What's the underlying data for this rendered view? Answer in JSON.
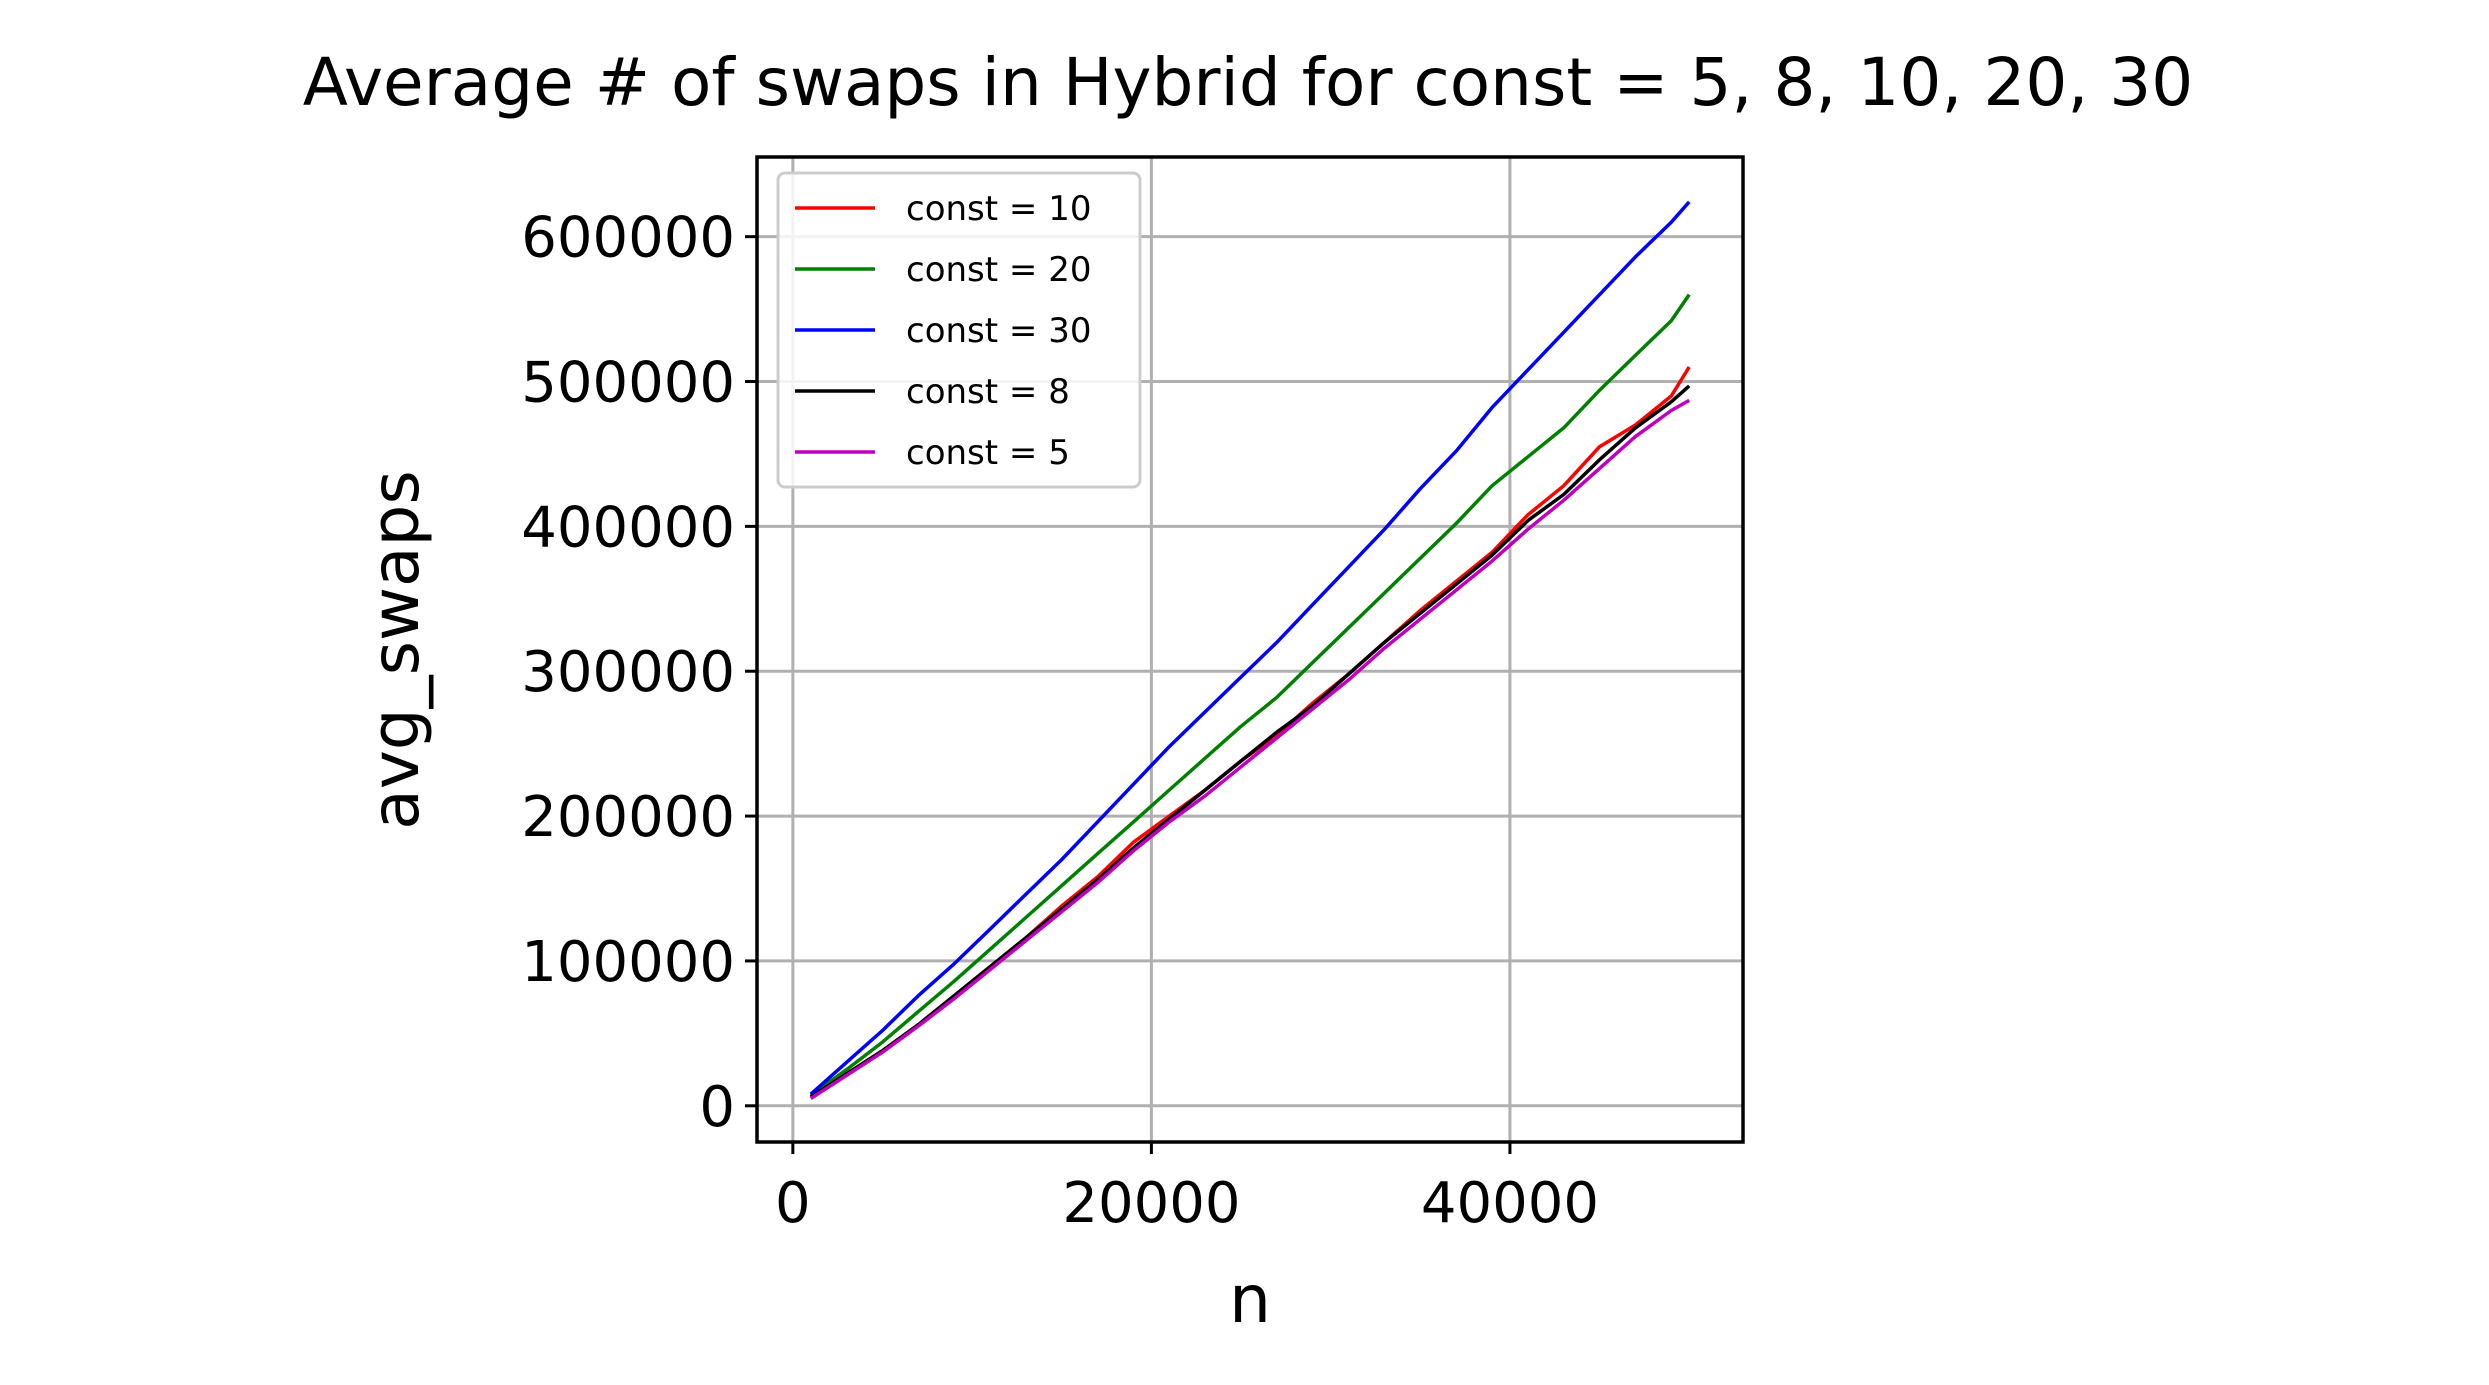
{
  "chart_data": {
    "type": "line",
    "title": "Average # of swaps in Hybrid for const = 5, 8, 10, 20, 30",
    "xlabel": "n",
    "ylabel": "avg_swaps",
    "xlim": [
      -2000,
      53000
    ],
    "ylim": [
      -25000,
      655000
    ],
    "xticks": [
      0,
      20000,
      40000
    ],
    "yticks": [
      0,
      100000,
      200000,
      300000,
      400000,
      500000,
      600000
    ],
    "grid": true,
    "legend_position": "upper-left",
    "series": [
      {
        "name": "const = 10",
        "color": "#ff0000",
        "x": [
          1000,
          3000,
          5000,
          7000,
          9000,
          11000,
          13000,
          15000,
          17000,
          19000,
          21000,
          23000,
          25000,
          27000,
          29000,
          31000,
          33000,
          35000,
          37000,
          39000,
          41000,
          43000,
          45000,
          47000,
          49000,
          50000
        ],
        "y": [
          6000,
          22000,
          38000,
          56000,
          76000,
          96000,
          116000,
          138000,
          158000,
          182000,
          200000,
          218000,
          238000,
          256000,
          278000,
          298000,
          320000,
          342000,
          362000,
          382000,
          408000,
          428000,
          455000,
          470000,
          490000,
          510000
        ]
      },
      {
        "name": "const = 20",
        "color": "#008000",
        "x": [
          1000,
          3000,
          5000,
          7000,
          9000,
          11000,
          13000,
          15000,
          17000,
          19000,
          21000,
          23000,
          25000,
          27000,
          29000,
          31000,
          33000,
          35000,
          37000,
          39000,
          41000,
          43000,
          45000,
          47000,
          49000,
          50000
        ],
        "y": [
          7000,
          25000,
          44000,
          65000,
          86000,
          108000,
          130000,
          152000,
          174000,
          196000,
          218000,
          240000,
          262000,
          282000,
          306000,
          330000,
          354000,
          378000,
          402000,
          428000,
          448000,
          468000,
          494000,
          518000,
          542000,
          560000
        ]
      },
      {
        "name": "const = 30",
        "color": "#0000ff",
        "x": [
          1000,
          3000,
          5000,
          7000,
          9000,
          11000,
          13000,
          15000,
          17000,
          19000,
          21000,
          23000,
          25000,
          27000,
          29000,
          31000,
          33000,
          35000,
          37000,
          39000,
          41000,
          43000,
          45000,
          47000,
          49000,
          50000
        ],
        "y": [
          8000,
          30000,
          52000,
          76000,
          98000,
          122000,
          146000,
          170000,
          196000,
          222000,
          248000,
          272000,
          296000,
          320000,
          346000,
          372000,
          398000,
          426000,
          452000,
          482000,
          508000,
          534000,
          560000,
          586000,
          610000,
          624000
        ]
      },
      {
        "name": "const = 8",
        "color": "#000000",
        "x": [
          1000,
          3000,
          5000,
          7000,
          9000,
          11000,
          13000,
          15000,
          17000,
          19000,
          21000,
          23000,
          25000,
          27000,
          29000,
          31000,
          33000,
          35000,
          37000,
          39000,
          41000,
          43000,
          45000,
          47000,
          49000,
          50000
        ],
        "y": [
          6000,
          22000,
          38000,
          56000,
          76000,
          96000,
          116000,
          136000,
          156000,
          178000,
          198000,
          218000,
          238000,
          258000,
          276000,
          298000,
          320000,
          340000,
          360000,
          380000,
          404000,
          422000,
          446000,
          468000,
          486000,
          497000
        ]
      },
      {
        "name": "const = 5",
        "color": "#bf00bf",
        "x": [
          1000,
          3000,
          5000,
          7000,
          9000,
          11000,
          13000,
          15000,
          17000,
          19000,
          21000,
          23000,
          25000,
          27000,
          29000,
          31000,
          33000,
          35000,
          37000,
          39000,
          41000,
          43000,
          45000,
          47000,
          49000,
          50000
        ],
        "y": [
          5000,
          21000,
          37000,
          55000,
          74000,
          94000,
          114000,
          134000,
          154000,
          176000,
          196000,
          214000,
          234000,
          254000,
          274000,
          294000,
          316000,
          336000,
          356000,
          376000,
          398000,
          418000,
          440000,
          462000,
          480000,
          487000
        ]
      }
    ]
  }
}
